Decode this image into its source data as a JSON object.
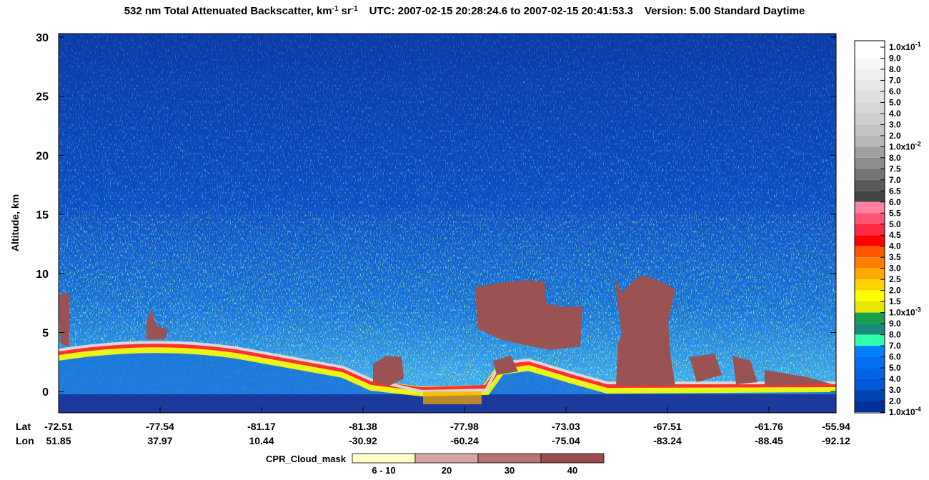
{
  "chart_data": {
    "type": "lidar-curtain",
    "title": {
      "main": "532 nm Total Attenuated Backscatter, km",
      "sup1": "-1",
      "unit2": "sr",
      "sup2": "-1",
      "utc": "UTC:  2007-02-15 20:28:24.6  to  2007-02-15 20:41:53.3",
      "version": "Version: 5.00  Standard  Daytime"
    },
    "y_label": "Altitude, km",
    "ylim": [
      -1.8,
      30.3
    ],
    "yticks": [
      0,
      5,
      10,
      15,
      20,
      25,
      30
    ],
    "x_row_labels": [
      "Lat",
      "Lon"
    ],
    "x_ticks": [
      {
        "lat": -72.51,
        "lon": 51.85
      },
      {
        "lat": -77.54,
        "lon": 37.97
      },
      {
        "lat": -81.17,
        "lon": 10.44
      },
      {
        "lat": -81.38,
        "lon": -30.92
      },
      {
        "lat": -77.98,
        "lon": -60.24
      },
      {
        "lat": -73.03,
        "lon": -75.04
      },
      {
        "lat": -67.51,
        "lon": -83.24
      },
      {
        "lat": -61.76,
        "lon": -88.45
      },
      {
        "lat": -55.94,
        "lon": -92.12
      }
    ],
    "colorbar": {
      "labels": [
        {
          "mantissa": "1.0x10",
          "exp": "-1"
        },
        "9.0",
        "8.0",
        "7.0",
        "6.0",
        "5.0",
        "4.0",
        "3.0",
        "2.0",
        {
          "mantissa": "1.0x10",
          "exp": "-2"
        },
        "8.0",
        "7.5",
        "7.0",
        "6.5",
        "6.0",
        "5.5",
        "5.0",
        "4.5",
        "4.0",
        "3.5",
        "3.0",
        "2.5",
        "2.0",
        "1.5",
        {
          "mantissa": "1.0x10",
          "exp": "-3"
        },
        "9.0",
        "8.0",
        "7.0",
        "6.0",
        "5.0",
        "4.0",
        "3.0",
        "2.0",
        {
          "mantissa": "1.0x10",
          "exp": "-4"
        }
      ],
      "colors": [
        "#ffffff",
        "#f7f7f7",
        "#efefef",
        "#e7e7e7",
        "#dfdfdf",
        "#d7d7d7",
        "#cfcfcf",
        "#c4c4c4",
        "#b8b8b8",
        "#a0a0a0",
        "#8c8c8c",
        "#737373",
        "#5a5a5a",
        "#444444",
        "#ff80a0",
        "#ff5575",
        "#ff2a45",
        "#ff0000",
        "#ff5500",
        "#ff7f00",
        "#ffaa00",
        "#ffd400",
        "#ffff00",
        "#e6e600",
        "#16a050",
        "#1a8a7a",
        "#30ffb0",
        "#0080ff",
        "#0070f0",
        "#0064e6",
        "#0058d8",
        "#0044b0",
        "#00309a"
      ]
    },
    "cpr_legend": {
      "label": "CPR_Cloud_mask",
      "bins": [
        "6 - 10",
        "20",
        "30",
        "40"
      ],
      "colors": [
        "#fffdc8",
        "#d6a6a6",
        "#b67474",
        "#9a4e4e"
      ]
    }
  }
}
